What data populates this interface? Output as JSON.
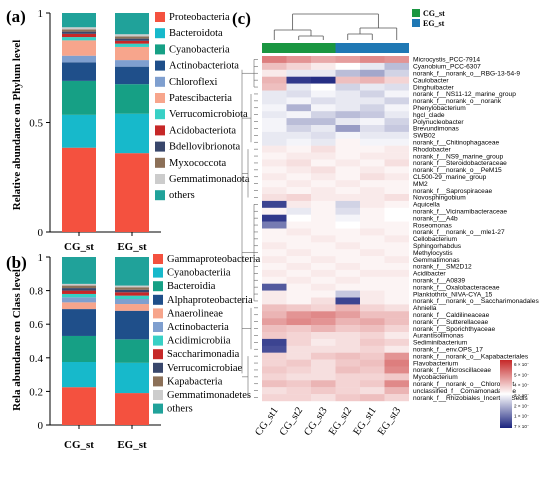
{
  "chart_data": [
    {
      "panel": "(a)",
      "type": "bar",
      "stacked": true,
      "ylabel": "Relative abundance on Phylum level",
      "yticks": [
        "0",
        "0.5",
        "1"
      ],
      "ylim": [
        0,
        1
      ],
      "categories": [
        "CG_st",
        "EG_st"
      ],
      "series": [
        {
          "name": "Proteobacteria",
          "color": "#f4513f",
          "values": [
            0.385,
            0.36
          ]
        },
        {
          "name": "Bacteroidota",
          "color": "#17b9cb",
          "values": [
            0.15,
            0.18
          ]
        },
        {
          "name": "Cyanobacteria",
          "color": "#16a085",
          "values": [
            0.155,
            0.135
          ]
        },
        {
          "name": "Actinobacteriota",
          "color": "#1f4f8a",
          "values": [
            0.085,
            0.08
          ]
        },
        {
          "name": "Chloroflexi",
          "color": "#7f9fcf",
          "values": [
            0.03,
            0.03
          ]
        },
        {
          "name": "Patescibacteria",
          "color": "#f7a58c",
          "values": [
            0.07,
            0.06
          ]
        },
        {
          "name": "Verrucomicrobiota",
          "color": "#38d0c5",
          "values": [
            0.015,
            0.015
          ]
        },
        {
          "name": "Acidobacteriota",
          "color": "#c62828",
          "values": [
            0.015,
            0.013
          ]
        },
        {
          "name": "Bdellovibrionota",
          "color": "#39476c",
          "values": [
            0.01,
            0.01
          ]
        },
        {
          "name": "Myxococcota",
          "color": "#8c7058",
          "values": [
            0.01,
            0.01
          ]
        },
        {
          "name": "Gemmatimonadota",
          "color": "#cccccc",
          "values": [
            0.01,
            0.01
          ]
        },
        {
          "name": "others",
          "color": "#20a29a",
          "values": [
            0.065,
            0.097
          ]
        }
      ]
    },
    {
      "panel": "(b)",
      "type": "bar",
      "stacked": true,
      "ylabel": "Rela abundance on Class level",
      "yticks": [
        "0",
        "0.2",
        "0.4",
        "0.6",
        "0.8",
        "1"
      ],
      "ylim": [
        0,
        1
      ],
      "categories": [
        "CG_st",
        "EG_st"
      ],
      "series": [
        {
          "name": "Gammaproteobacteria",
          "color": "#f4513f",
          "values": [
            0.225,
            0.19
          ]
        },
        {
          "name": "Cyanobacteriia",
          "color": "#17b9cb",
          "values": [
            0.15,
            0.18
          ]
        },
        {
          "name": "Bacteroidia",
          "color": "#16a085",
          "values": [
            0.155,
            0.14
          ]
        },
        {
          "name": "Alphaproteobacteria",
          "color": "#1f4f8a",
          "values": [
            0.16,
            0.17
          ]
        },
        {
          "name": "Anaerolineae",
          "color": "#f7a58c",
          "values": [
            0.04,
            0.04
          ]
        },
        {
          "name": "Actinobacteria",
          "color": "#7f9fcf",
          "values": [
            0.03,
            0.03
          ]
        },
        {
          "name": "Acidimicrobiia",
          "color": "#38d0c5",
          "values": [
            0.02,
            0.02
          ]
        },
        {
          "name": "Saccharimonadia",
          "color": "#c62828",
          "values": [
            0.02,
            0.02
          ]
        },
        {
          "name": "Verrucomicrobiae",
          "color": "#39476c",
          "values": [
            0.015,
            0.015
          ]
        },
        {
          "name": "Kapabacteria",
          "color": "#8c7058",
          "values": [
            0.015,
            0.015
          ]
        },
        {
          "name": "Gemmatimonadetes",
          "color": "#cccccc",
          "values": [
            0.01,
            0.01
          ]
        },
        {
          "name": "others",
          "color": "#20a29a",
          "values": [
            0.16,
            0.17
          ]
        }
      ]
    },
    {
      "panel": "(c)",
      "type": "heatmap",
      "groups_legend": [
        {
          "name": "CG_st",
          "color": "#1a9641"
        },
        {
          "name": "EG_st",
          "color": "#1f78b4"
        }
      ],
      "group_bar": [
        "#1a9641",
        "#1a9641",
        "#1a9641",
        "#1f78b4",
        "#1f78b4",
        "#1f78b4"
      ],
      "columns": [
        "CG_st1",
        "CG_st2",
        "CG_st3",
        "EG_st2",
        "EG_st1",
        "EG_st3"
      ],
      "colorscale": {
        "low": "#1a237e",
        "mid": "#ffffff",
        "high": "#c62828",
        "ticks": [
          "6 × 10⁻",
          "5 × 10⁻",
          "4 × 10⁻",
          "3 × 10⁻",
          "2 × 10⁻",
          "1 × 10⁻",
          "7 × 10⁻"
        ]
      },
      "rows": [
        {
          "name": "Microcystis_PCC-7914",
          "values": [
            0.6,
            0.5,
            0.4,
            0.45,
            0.55,
            0.5
          ]
        },
        {
          "name": "Cyanobium_PCC-6307",
          "values": [
            0.3,
            0.2,
            0.1,
            0.0,
            -0.1,
            -0.3
          ]
        },
        {
          "name": "norank_f__norank_o__RBG-13-54-9",
          "values": [
            0.1,
            -0.1,
            -0.1,
            -0.3,
            -0.4,
            -0.2
          ]
        },
        {
          "name": "Caulobacter",
          "values": [
            0.35,
            -0.9,
            -0.95,
            0.3,
            0.35,
            0.2
          ]
        },
        {
          "name": "Dinghuibacter",
          "values": [
            0.3,
            -0.1,
            0.0,
            -0.2,
            -0.1,
            -0.15
          ]
        },
        {
          "name": "norank_f__NS11-12_marine_group",
          "values": [
            -0.1,
            -0.15,
            -0.05,
            -0.1,
            -0.2,
            -0.05
          ]
        },
        {
          "name": "norank_f__norank_o__norank",
          "values": [
            -0.1,
            -0.05,
            -0.15,
            -0.1,
            -0.1,
            -0.2
          ]
        },
        {
          "name": "Phenylobacterium",
          "values": [
            -0.05,
            -0.35,
            -0.05,
            -0.1,
            -0.2,
            -0.05
          ]
        },
        {
          "name": "hgcl_clade",
          "values": [
            -0.1,
            -0.05,
            -0.2,
            -0.3,
            -0.25,
            -0.1
          ]
        },
        {
          "name": "Polynucleobacter",
          "values": [
            -0.05,
            -0.3,
            -0.3,
            -0.1,
            -0.05,
            -0.2
          ]
        },
        {
          "name": "Brevundimonas",
          "values": [
            -0.05,
            -0.2,
            -0.1,
            -0.45,
            -0.15,
            -0.25
          ]
        },
        {
          "name": "SWB02",
          "values": [
            -0.1,
            -0.1,
            -0.15,
            -0.05,
            -0.1,
            -0.1
          ]
        },
        {
          "name": "norank_f__Chitinophagaceae",
          "values": [
            -0.1,
            -0.05,
            -0.1,
            0.05,
            -0.05,
            -0.05
          ]
        },
        {
          "name": "Rhodobacter",
          "values": [
            0.1,
            0.05,
            0.15,
            0.05,
            0.05,
            0.1
          ]
        },
        {
          "name": "norank_f__NS9_marine_group",
          "values": [
            0.05,
            0.1,
            0.1,
            0.05,
            0.1,
            0.1
          ]
        },
        {
          "name": "norank_f__Steroidobacteraceae",
          "values": [
            0.1,
            0.15,
            0.05,
            0.1,
            0.05,
            0.15
          ]
        },
        {
          "name": "norank_f__norank_o__PeM15",
          "values": [
            0.05,
            0.1,
            0.15,
            0.05,
            0.1,
            0.05
          ]
        },
        {
          "name": "CL500-29_marine_group",
          "values": [
            0.1,
            0.05,
            0.1,
            0.05,
            0.15,
            0.1
          ]
        },
        {
          "name": "MM2",
          "values": [
            0.05,
            0.1,
            0.05,
            0.1,
            0.05,
            0.05
          ]
        },
        {
          "name": "norank_f__Saprospiraceae",
          "values": [
            0.1,
            0.05,
            0.1,
            0.05,
            0.1,
            0.05
          ]
        },
        {
          "name": "Novosphingobium",
          "values": [
            0.15,
            0.2,
            0.1,
            0.1,
            0.1,
            0.15
          ]
        },
        {
          "name": "Aquicella",
          "values": [
            -0.85,
            0.1,
            0.05,
            -0.2,
            0.1,
            0.05
          ]
        },
        {
          "name": "norank_f__Vicinamibacteraceae",
          "values": [
            0.05,
            -0.1,
            0.05,
            -0.15,
            0.05,
            0.0
          ]
        },
        {
          "name": "norank_f__A4b",
          "values": [
            -0.9,
            0.0,
            0.05,
            -0.05,
            0.05,
            0.0
          ]
        },
        {
          "name": "Roseomonas",
          "values": [
            -0.6,
            0.05,
            0.05,
            0.0,
            0.05,
            0.05
          ]
        },
        {
          "name": "norank_f__norank_o__mle1-27",
          "values": [
            0.05,
            0.1,
            0.05,
            0.05,
            0.1,
            0.05
          ]
        },
        {
          "name": "Cellobacterium",
          "values": [
            0.05,
            0.05,
            0.1,
            0.05,
            0.05,
            0.1
          ]
        },
        {
          "name": "Sphingorhabdus",
          "values": [
            0.1,
            0.05,
            0.05,
            0.1,
            0.05,
            0.05
          ]
        },
        {
          "name": "Methylocystis",
          "values": [
            0.05,
            0.1,
            0.05,
            0.05,
            0.1,
            0.05
          ]
        },
        {
          "name": "Gemmatimonas",
          "values": [
            0.1,
            0.05,
            0.1,
            0.05,
            0.05,
            0.1
          ]
        },
        {
          "name": "norank_f__SM2D12",
          "values": [
            0.05,
            0.1,
            0.05,
            0.1,
            0.05,
            0.05
          ]
        },
        {
          "name": "Acidibacter",
          "values": [
            0.1,
            0.05,
            0.1,
            0.05,
            0.1,
            0.1
          ]
        },
        {
          "name": "norank_f__A0839",
          "values": [
            0.05,
            0.1,
            0.05,
            0.1,
            0.05,
            0.05
          ]
        },
        {
          "name": "norank_f__Oxalobacteraceae",
          "values": [
            -0.75,
            0.05,
            0.1,
            0.05,
            0.05,
            0.05
          ]
        },
        {
          "name": "Planktothrix_NIVA-CYA_15",
          "values": [
            0.1,
            0.05,
            0.05,
            -0.25,
            0.1,
            0.05
          ]
        },
        {
          "name": "norank_f__norank_o__Saccharimonadales",
          "values": [
            0.1,
            0.05,
            0.15,
            -0.85,
            0.1,
            0.05
          ]
        },
        {
          "name": "Ahniella",
          "values": [
            0.3,
            0.25,
            0.2,
            0.35,
            0.2,
            0.15
          ]
        },
        {
          "name": "norank_f__Caldilineaceae",
          "values": [
            0.35,
            0.5,
            0.55,
            0.45,
            0.3,
            0.3
          ]
        },
        {
          "name": "norank_f__Sutterellaceae",
          "values": [
            0.45,
            0.55,
            0.5,
            0.35,
            0.4,
            0.3
          ]
        },
        {
          "name": "norank_f__Sporichthyaceae",
          "values": [
            0.3,
            0.25,
            0.35,
            0.25,
            0.3,
            0.2
          ]
        },
        {
          "name": "Aurantisolimonas",
          "values": [
            0.25,
            0.2,
            0.15,
            0.15,
            0.2,
            0.1
          ]
        },
        {
          "name": "Sediminibacterium",
          "values": [
            -0.85,
            0.2,
            0.1,
            0.15,
            0.25,
            0.2
          ]
        },
        {
          "name": "norank_f__env.OPS_17",
          "values": [
            -0.8,
            0.15,
            0.15,
            0.15,
            0.2,
            0.1
          ]
        },
        {
          "name": "norank_f__norank_o__Kapabacteriales",
          "values": [
            0.2,
            0.15,
            0.25,
            0.3,
            0.25,
            0.5
          ]
        },
        {
          "name": "Flavobacterium",
          "values": [
            0.2,
            0.25,
            0.15,
            0.25,
            0.3,
            0.6
          ]
        },
        {
          "name": "norank_f__Microscillaceae",
          "values": [
            0.25,
            0.2,
            0.15,
            0.3,
            0.25,
            0.55
          ]
        },
        {
          "name": "Mycobacterium",
          "values": [
            0.2,
            0.15,
            0.15,
            0.2,
            0.2,
            0.25
          ]
        },
        {
          "name": "norank_f__norank_o__Chloroplast",
          "values": [
            0.3,
            0.25,
            0.35,
            0.2,
            0.25,
            0.55
          ]
        },
        {
          "name": "unclassified_f__Comamonadaceae",
          "values": [
            0.15,
            0.2,
            0.25,
            0.2,
            0.15,
            0.35
          ]
        },
        {
          "name": "norank_f__Rhizobiales_Incertae_Sedis",
          "values": [
            0.2,
            0.2,
            0.15,
            0.25,
            0.3,
            0.2
          ]
        }
      ]
    }
  ]
}
